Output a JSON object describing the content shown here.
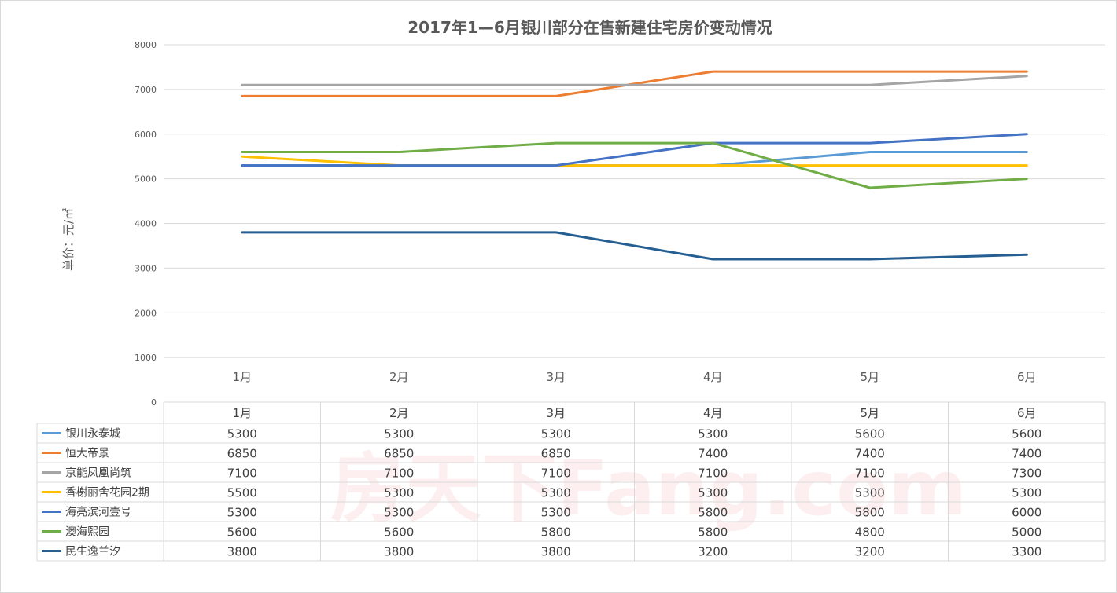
{
  "chart_data": {
    "type": "line",
    "title": "2017年1—6月银川部分在售新建住宅房价变动情况",
    "ylabel": "单价：元/㎡",
    "xlabel": "",
    "categories": [
      "1月",
      "2月",
      "3月",
      "4月",
      "5月",
      "6月"
    ],
    "ylim": [
      0,
      8000
    ],
    "yticks": [
      0,
      1000,
      2000,
      3000,
      4000,
      5000,
      6000,
      7000,
      8000
    ],
    "grid": true,
    "legend": "data-table",
    "series": [
      {
        "name": "银川永泰城",
        "color": "#5b9bd5",
        "values": [
          5300,
          5300,
          5300,
          5300,
          5600,
          5600
        ]
      },
      {
        "name": "恒大帝景",
        "color": "#ed7d31",
        "values": [
          6850,
          6850,
          6850,
          7400,
          7400,
          7400
        ]
      },
      {
        "name": "京能凤凰尚筑",
        "color": "#a5a5a5",
        "values": [
          7100,
          7100,
          7100,
          7100,
          7100,
          7300
        ]
      },
      {
        "name": "香榭丽舍花园2期",
        "color": "#ffc000",
        "values": [
          5500,
          5300,
          5300,
          5300,
          5300,
          5300
        ]
      },
      {
        "name": "海亮滨河壹号",
        "color": "#4472c4",
        "values": [
          5300,
          5300,
          5300,
          5800,
          5800,
          6000
        ]
      },
      {
        "name": "澳海熙园",
        "color": "#70ad47",
        "values": [
          5600,
          5600,
          5800,
          5800,
          4800,
          5000
        ]
      },
      {
        "name": "民生逸兰汐",
        "color": "#255e91",
        "values": [
          3800,
          3800,
          3800,
          3200,
          3200,
          3300
        ]
      }
    ]
  },
  "watermark": "房天下Fang.com"
}
